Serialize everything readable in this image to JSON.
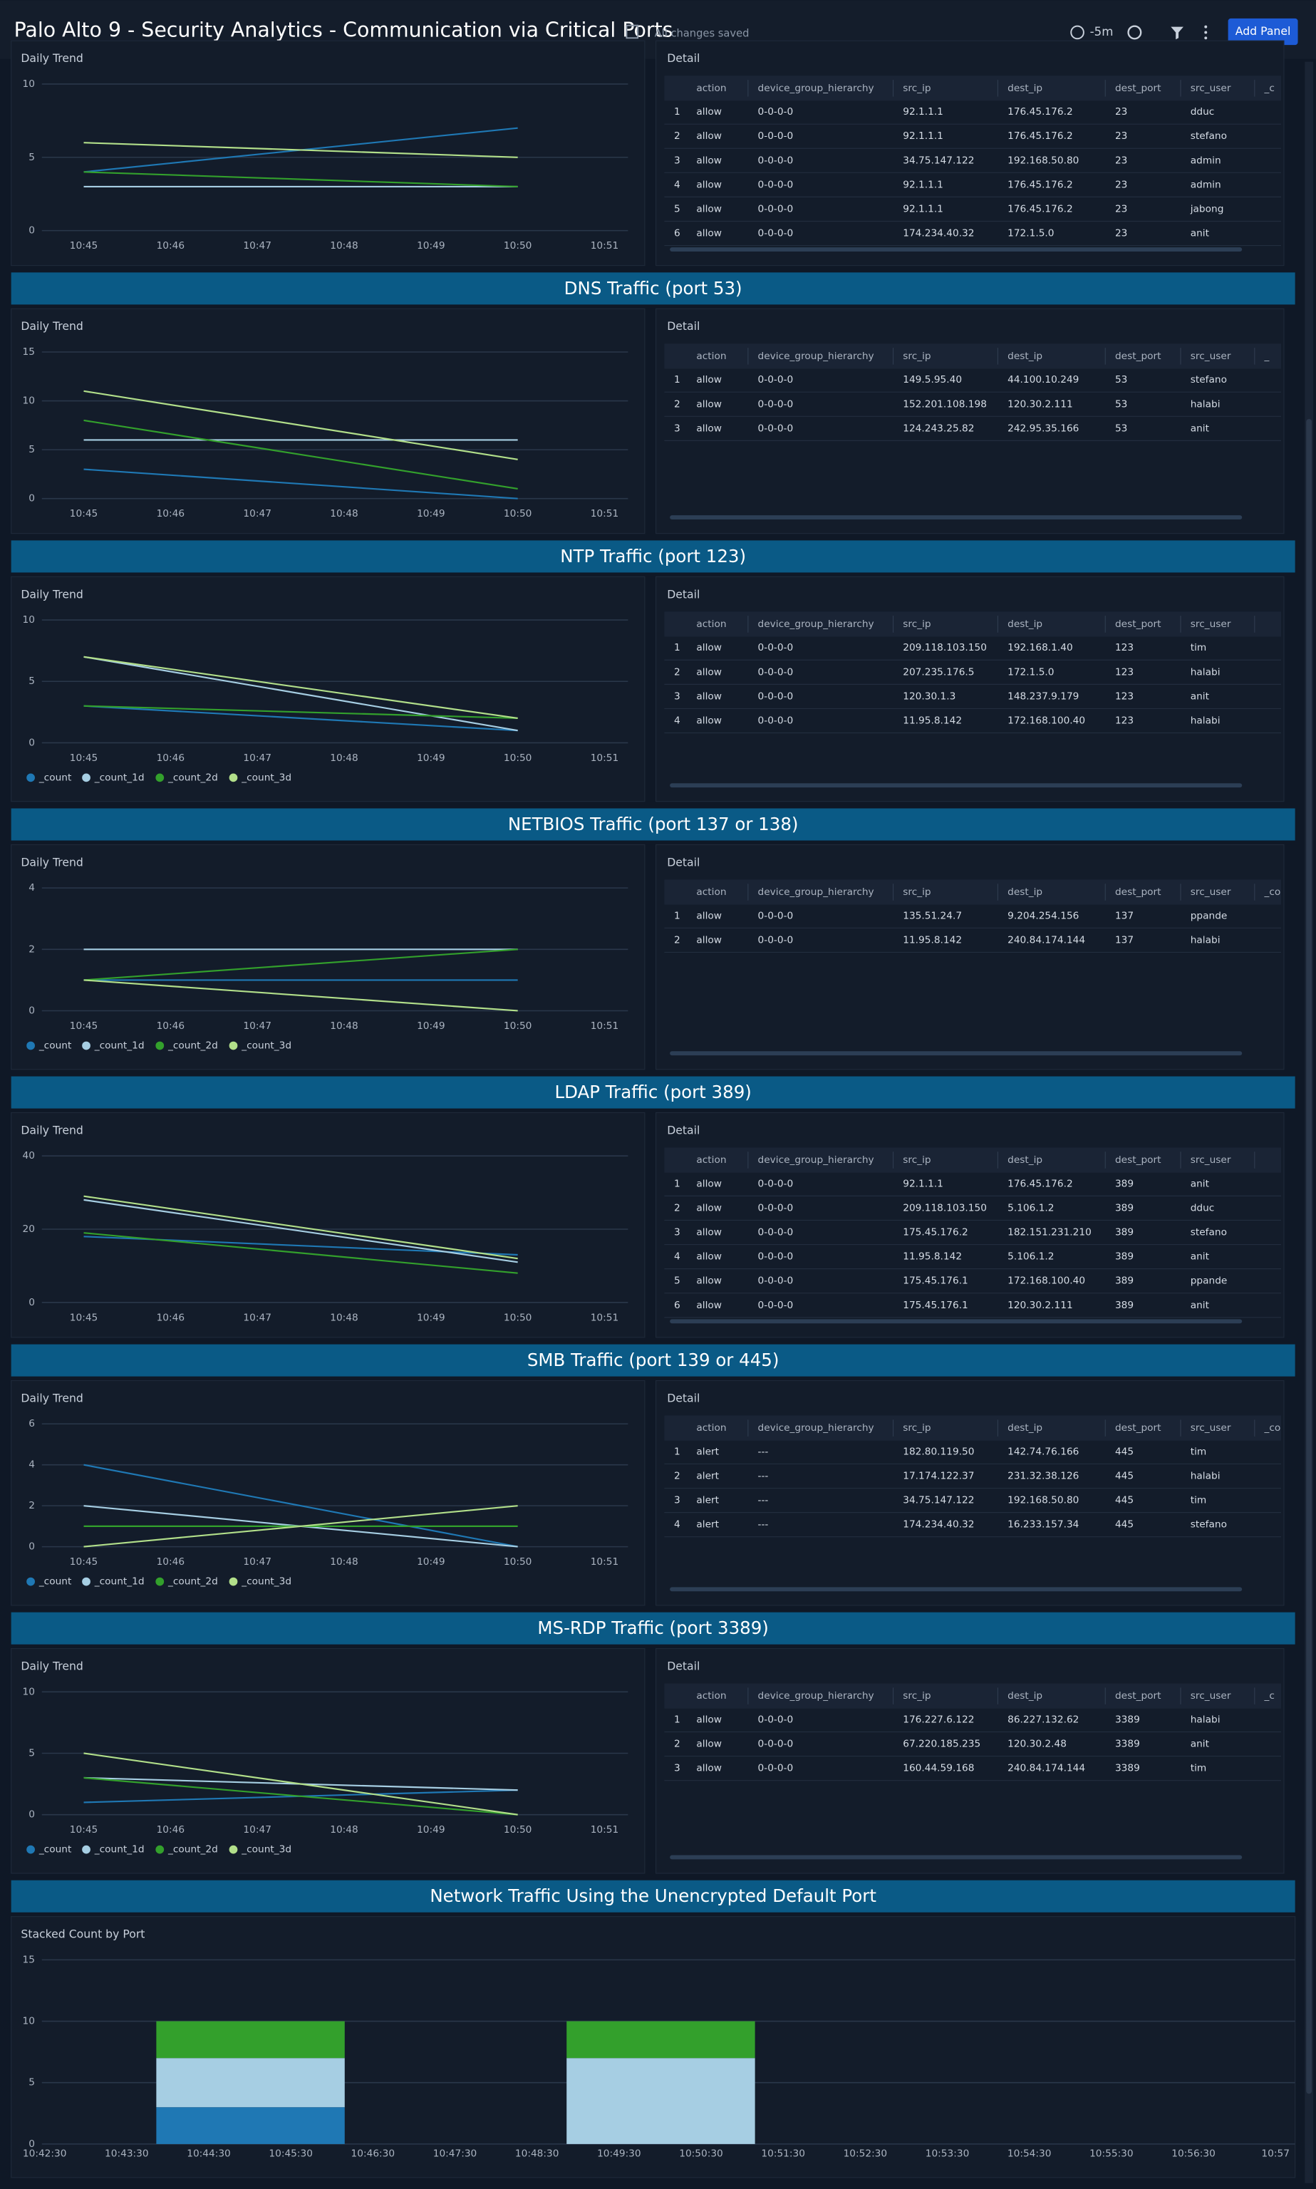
{
  "header": {
    "title": "Palo Alto 9 - Security Analytics - Communication via Critical Ports",
    "status": "All changes saved",
    "time_range": "-5m",
    "button": "Add Panel"
  },
  "sections": [
    {
      "chart": {
        "type": "line",
        "label": "Daily Trend",
        "ylim": [
          0,
          10
        ],
        "yticks": [
          0,
          5,
          10
        ],
        "categories": [
          "10:45",
          "10:46",
          "10:47",
          "10:48",
          "10:49",
          "10:50",
          "10:51"
        ],
        "legend": false,
        "series": [
          {
            "color": "#1f78b4",
            "x": [
              "10:45",
              "10:50"
            ],
            "values": [
              4,
              7
            ]
          },
          {
            "color": "#a6cee3",
            "x": [
              "10:45",
              "10:50"
            ],
            "values": [
              3,
              3
            ]
          },
          {
            "color": "#33a02c",
            "x": [
              "10:45",
              "10:50"
            ],
            "values": [
              4,
              3
            ]
          },
          {
            "color": "#b2df8a",
            "x": [
              "10:45",
              "10:50"
            ],
            "values": [
              6,
              5
            ]
          }
        ]
      },
      "table": {
        "label": "Detail",
        "columns": [
          "action",
          "device_group_hierarchy",
          "src_ip",
          "dest_ip",
          "dest_port",
          "src_user",
          "_c"
        ],
        "rows": [
          [
            "1",
            "allow",
            "0-0-0-0",
            "92.1.1.1",
            "176.45.176.2",
            "23",
            "dduc"
          ],
          [
            "2",
            "allow",
            "0-0-0-0",
            "92.1.1.1",
            "176.45.176.2",
            "23",
            "stefano"
          ],
          [
            "3",
            "allow",
            "0-0-0-0",
            "34.75.147.122",
            "192.168.50.80",
            "23",
            "admin"
          ],
          [
            "4",
            "allow",
            "0-0-0-0",
            "92.1.1.1",
            "176.45.176.2",
            "23",
            "admin"
          ],
          [
            "5",
            "allow",
            "0-0-0-0",
            "92.1.1.1",
            "176.45.176.2",
            "23",
            "jabong"
          ],
          [
            "6",
            "allow",
            "0-0-0-0",
            "174.234.40.32",
            "172.1.5.0",
            "23",
            "anit"
          ]
        ]
      }
    },
    {
      "title": "DNS Traffic (port 53)",
      "chart": {
        "type": "line",
        "label": "Daily Trend",
        "ylim": [
          0,
          15
        ],
        "yticks": [
          0,
          5,
          10,
          15
        ],
        "categories": [
          "10:45",
          "10:46",
          "10:47",
          "10:48",
          "10:49",
          "10:50",
          "10:51"
        ],
        "legend": false,
        "series": [
          {
            "color": "#1f78b4",
            "x": [
              "10:45",
              "10:50"
            ],
            "values": [
              3,
              0
            ]
          },
          {
            "color": "#a6cee3",
            "x": [
              "10:45",
              "10:50"
            ],
            "values": [
              6,
              6
            ]
          },
          {
            "color": "#33a02c",
            "x": [
              "10:45",
              "10:50"
            ],
            "values": [
              8,
              1
            ]
          },
          {
            "color": "#b2df8a",
            "x": [
              "10:45",
              "10:50"
            ],
            "values": [
              11,
              4
            ]
          }
        ]
      },
      "table": {
        "label": "Detail",
        "columns": [
          "action",
          "device_group_hierarchy",
          "src_ip",
          "dest_ip",
          "dest_port",
          "src_user",
          "_"
        ],
        "rows": [
          [
            "1",
            "allow",
            "0-0-0-0",
            "149.5.95.40",
            "44.100.10.249",
            "53",
            "stefano"
          ],
          [
            "2",
            "allow",
            "0-0-0-0",
            "152.201.108.198",
            "120.30.2.111",
            "53",
            "halabi"
          ],
          [
            "3",
            "allow",
            "0-0-0-0",
            "124.243.25.82",
            "242.95.35.166",
            "53",
            "anit"
          ]
        ]
      }
    },
    {
      "title": "NTP Traffic (port 123)",
      "chart": {
        "type": "line",
        "label": "Daily Trend",
        "ylim": [
          0,
          10
        ],
        "yticks": [
          0,
          5,
          10
        ],
        "categories": [
          "10:45",
          "10:46",
          "10:47",
          "10:48",
          "10:49",
          "10:50",
          "10:51"
        ],
        "legend": true,
        "series": [
          {
            "name": "_count",
            "color": "#1f78b4",
            "x": [
              "10:45",
              "10:50"
            ],
            "values": [
              3,
              1
            ]
          },
          {
            "name": "_count_1d",
            "color": "#a6cee3",
            "x": [
              "10:45",
              "10:50"
            ],
            "values": [
              7,
              1
            ]
          },
          {
            "name": "_count_2d",
            "color": "#33a02c",
            "x": [
              "10:45",
              "10:50"
            ],
            "values": [
              3,
              2
            ]
          },
          {
            "name": "_count_3d",
            "color": "#b2df8a",
            "x": [
              "10:45",
              "10:50"
            ],
            "values": [
              7,
              2
            ]
          }
        ]
      },
      "table": {
        "label": "Detail",
        "columns": [
          "action",
          "device_group_hierarchy",
          "src_ip",
          "dest_ip",
          "dest_port",
          "src_user"
        ],
        "rows": [
          [
            "1",
            "allow",
            "0-0-0-0",
            "209.118.103.150",
            "192.168.1.40",
            "123",
            "tim"
          ],
          [
            "2",
            "allow",
            "0-0-0-0",
            "207.235.176.5",
            "172.1.5.0",
            "123",
            "halabi"
          ],
          [
            "3",
            "allow",
            "0-0-0-0",
            "120.30.1.3",
            "148.237.9.179",
            "123",
            "anit"
          ],
          [
            "4",
            "allow",
            "0-0-0-0",
            "11.95.8.142",
            "172.168.100.40",
            "123",
            "halabi"
          ]
        ]
      }
    },
    {
      "title": "NETBIOS Traffic (port 137 or 138)",
      "chart": {
        "type": "line",
        "label": "Daily Trend",
        "ylim": [
          0,
          4
        ],
        "yticks": [
          0,
          2,
          4
        ],
        "categories": [
          "10:45",
          "10:46",
          "10:47",
          "10:48",
          "10:49",
          "10:50",
          "10:51"
        ],
        "legend": true,
        "series": [
          {
            "name": "_count",
            "color": "#1f78b4",
            "x": [
              "10:45",
              "10:50"
            ],
            "values": [
              1,
              1
            ]
          },
          {
            "name": "_count_1d",
            "color": "#a6cee3",
            "x": [
              "10:45",
              "10:50"
            ],
            "values": [
              2,
              2
            ]
          },
          {
            "name": "_count_2d",
            "color": "#33a02c",
            "x": [
              "10:45",
              "10:50"
            ],
            "values": [
              1,
              2
            ]
          },
          {
            "name": "_count_3d",
            "color": "#b2df8a",
            "x": [
              "10:45",
              "10:50"
            ],
            "values": [
              1,
              0
            ]
          }
        ]
      },
      "table": {
        "label": "Detail",
        "columns": [
          "action",
          "device_group_hierarchy",
          "src_ip",
          "dest_ip",
          "dest_port",
          "src_user",
          "_cou"
        ],
        "rows": [
          [
            "1",
            "allow",
            "0-0-0-0",
            "135.51.24.7",
            "9.204.254.156",
            "137",
            "ppande"
          ],
          [
            "2",
            "allow",
            "0-0-0-0",
            "11.95.8.142",
            "240.84.174.144",
            "137",
            "halabi"
          ]
        ]
      }
    },
    {
      "title": "LDAP Traffic (port 389)",
      "chart": {
        "type": "line",
        "label": "Daily Trend",
        "ylim": [
          0,
          40
        ],
        "yticks": [
          0,
          20,
          40
        ],
        "categories": [
          "10:45",
          "10:46",
          "10:47",
          "10:48",
          "10:49",
          "10:50",
          "10:51"
        ],
        "legend": false,
        "series": [
          {
            "color": "#1f78b4",
            "x": [
              "10:45",
              "10:50"
            ],
            "values": [
              18,
              13
            ]
          },
          {
            "color": "#a6cee3",
            "x": [
              "10:45",
              "10:50"
            ],
            "values": [
              28,
              11
            ]
          },
          {
            "color": "#33a02c",
            "x": [
              "10:45",
              "10:50"
            ],
            "values": [
              19,
              8
            ]
          },
          {
            "color": "#b2df8a",
            "x": [
              "10:45",
              "10:50"
            ],
            "values": [
              29,
              12
            ]
          }
        ]
      },
      "table": {
        "label": "Detail",
        "columns": [
          "action",
          "device_group_hierarchy",
          "src_ip",
          "dest_ip",
          "dest_port",
          "src_user"
        ],
        "rows": [
          [
            "1",
            "allow",
            "0-0-0-0",
            "92.1.1.1",
            "176.45.176.2",
            "389",
            "anit"
          ],
          [
            "2",
            "allow",
            "0-0-0-0",
            "209.118.103.150",
            "5.106.1.2",
            "389",
            "dduc"
          ],
          [
            "3",
            "allow",
            "0-0-0-0",
            "175.45.176.2",
            "182.151.231.210",
            "389",
            "stefano"
          ],
          [
            "4",
            "allow",
            "0-0-0-0",
            "11.95.8.142",
            "5.106.1.2",
            "389",
            "anit"
          ],
          [
            "5",
            "allow",
            "0-0-0-0",
            "175.45.176.1",
            "172.168.100.40",
            "389",
            "ppande"
          ],
          [
            "6",
            "allow",
            "0-0-0-0",
            "175.45.176.1",
            "120.30.2.111",
            "389",
            "anit"
          ]
        ]
      }
    },
    {
      "title": "SMB Traffic (port 139 or 445)",
      "chart": {
        "type": "line",
        "label": "Daily Trend",
        "ylim": [
          0,
          6
        ],
        "yticks": [
          0,
          2,
          4,
          6
        ],
        "categories": [
          "10:45",
          "10:46",
          "10:47",
          "10:48",
          "10:49",
          "10:50",
          "10:51"
        ],
        "legend": true,
        "series": [
          {
            "name": "_count",
            "color": "#1f78b4",
            "x": [
              "10:45",
              "10:50"
            ],
            "values": [
              4,
              0
            ]
          },
          {
            "name": "_count_1d",
            "color": "#a6cee3",
            "x": [
              "10:45",
              "10:50"
            ],
            "values": [
              2,
              0
            ]
          },
          {
            "name": "_count_2d",
            "color": "#33a02c",
            "x": [
              "10:45",
              "10:50"
            ],
            "values": [
              1,
              1
            ]
          },
          {
            "name": "_count_3d",
            "color": "#b2df8a",
            "x": [
              "10:45",
              "10:50"
            ],
            "values": [
              0,
              2
            ]
          }
        ]
      },
      "table": {
        "label": "Detail",
        "columns": [
          "action",
          "device_group_hierarchy",
          "src_ip",
          "dest_ip",
          "dest_port",
          "src_user",
          "_co"
        ],
        "rows": [
          [
            "1",
            "alert",
            "---",
            "182.80.119.50",
            "142.74.76.166",
            "445",
            "tim"
          ],
          [
            "2",
            "alert",
            "---",
            "17.174.122.37",
            "231.32.38.126",
            "445",
            "halabi"
          ],
          [
            "3",
            "alert",
            "---",
            "34.75.147.122",
            "192.168.50.80",
            "445",
            "tim"
          ],
          [
            "4",
            "alert",
            "---",
            "174.234.40.32",
            "16.233.157.34",
            "445",
            "stefano"
          ]
        ]
      }
    },
    {
      "title": "MS-RDP Traffic (port 3389)",
      "chart": {
        "type": "line",
        "label": "Daily Trend",
        "ylim": [
          0,
          10
        ],
        "yticks": [
          0,
          5,
          10
        ],
        "categories": [
          "10:45",
          "10:46",
          "10:47",
          "10:48",
          "10:49",
          "10:50",
          "10:51"
        ],
        "legend": true,
        "series": [
          {
            "name": "_count",
            "color": "#1f78b4",
            "x": [
              "10:45",
              "10:50"
            ],
            "values": [
              1,
              2
            ]
          },
          {
            "name": "_count_1d",
            "color": "#a6cee3",
            "x": [
              "10:45",
              "10:50"
            ],
            "values": [
              3,
              2
            ]
          },
          {
            "name": "_count_2d",
            "color": "#33a02c",
            "x": [
              "10:45",
              "10:50"
            ],
            "values": [
              3,
              0
            ]
          },
          {
            "name": "_count_3d",
            "color": "#b2df8a",
            "x": [
              "10:45",
              "10:50"
            ],
            "values": [
              5,
              0
            ]
          }
        ]
      },
      "table": {
        "label": "Detail",
        "columns": [
          "action",
          "device_group_hierarchy",
          "src_ip",
          "dest_ip",
          "dest_port",
          "src_user",
          "_c"
        ],
        "rows": [
          [
            "1",
            "allow",
            "0-0-0-0",
            "176.227.6.122",
            "86.227.132.62",
            "3389",
            "halabi"
          ],
          [
            "2",
            "allow",
            "0-0-0-0",
            "67.220.185.235",
            "120.30.2.48",
            "3389",
            "anit"
          ],
          [
            "3",
            "allow",
            "0-0-0-0",
            "160.44.59.168",
            "240.84.174.144",
            "3389",
            "tim"
          ]
        ]
      }
    }
  ],
  "stacked": {
    "title": "Network Traffic Using the Unencrypted Default Port",
    "chart": {
      "type": "stacked_bar",
      "label": "Stacked Count by Port",
      "ylim": [
        0,
        15
      ],
      "yticks": [
        0,
        5,
        10,
        15
      ],
      "xticks": [
        "10:42:30",
        "10:43:30",
        "10:44:30",
        "10:45:30",
        "10:46:30",
        "10:47:30",
        "10:48:30",
        "10:49:30",
        "10:50:30",
        "10:51:30",
        "10:52:30",
        "10:53:30",
        "10:54:30",
        "10:55:30",
        "10:56:30",
        "10:57"
      ],
      "categories": [
        null,
        null
      ],
      "series": [
        {
          "color": "#1f78b4",
          "values": [
            3,
            0
          ]
        },
        {
          "color": "#a6cee3",
          "values": [
            4,
            7
          ]
        },
        {
          "color": "#33a02c",
          "values": [
            3,
            3
          ]
        }
      ]
    }
  }
}
